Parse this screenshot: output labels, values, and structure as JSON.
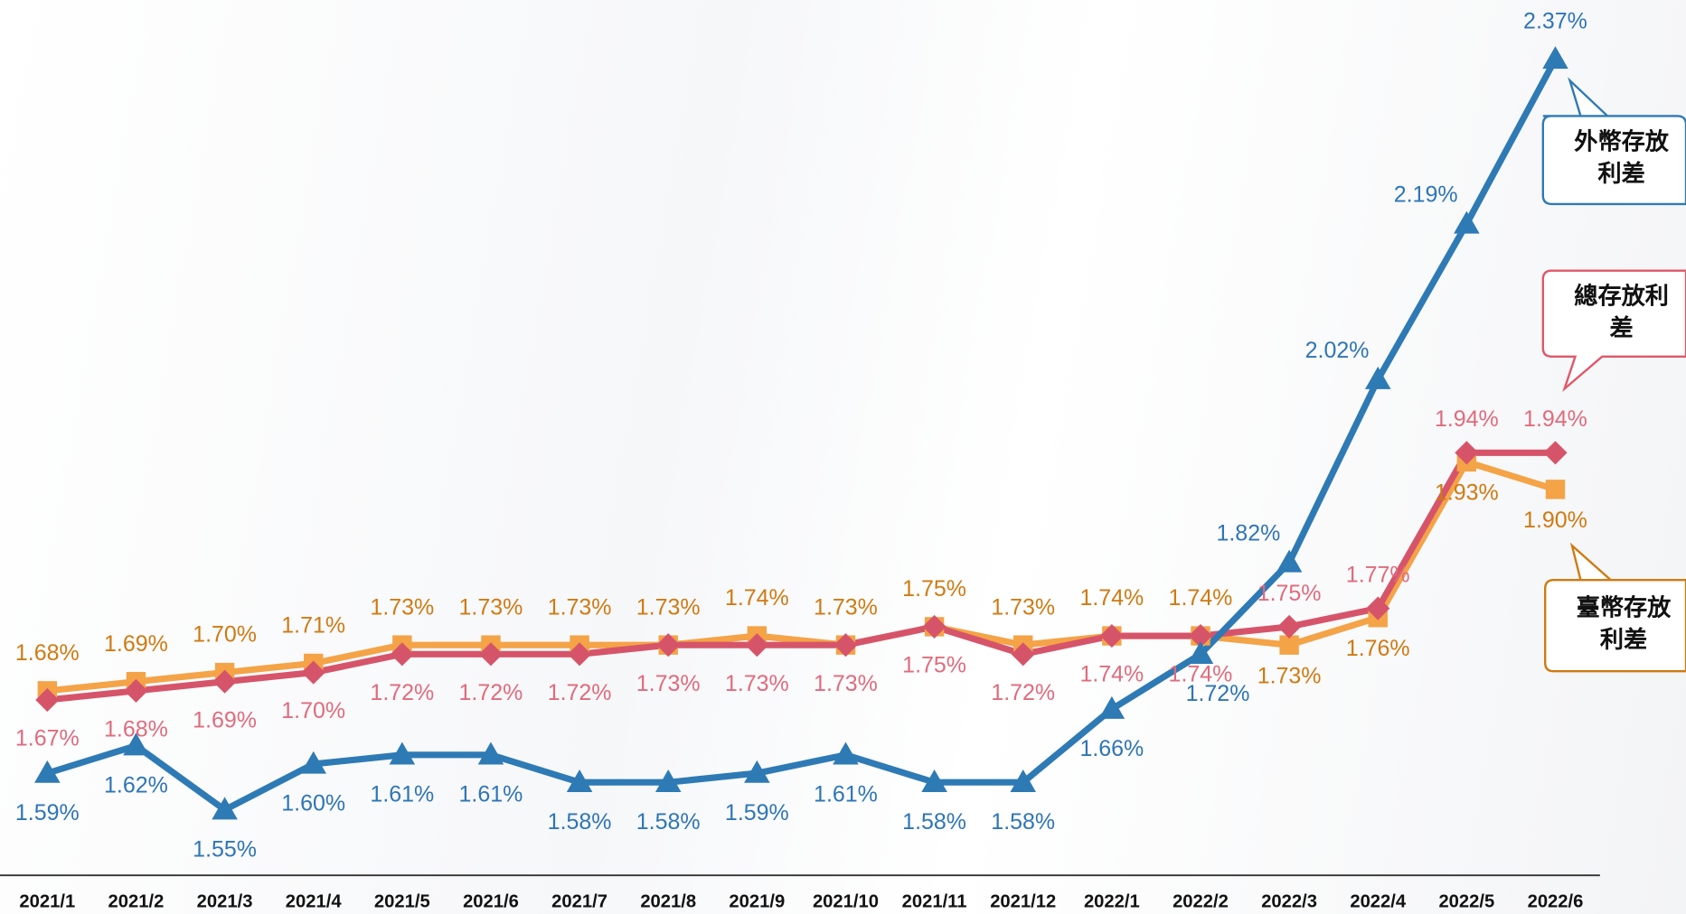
{
  "chart_data": {
    "type": "line",
    "categories": [
      "2021/1",
      "2021/2",
      "2021/3",
      "2021/4",
      "2021/5",
      "2021/6",
      "2021/7",
      "2021/8",
      "2021/9",
      "2021/10",
      "2021/11",
      "2021/12",
      "2022/1",
      "2022/2",
      "2022/3",
      "2022/4",
      "2022/5",
      "2022/6"
    ],
    "series": [
      {
        "name": "臺幣存放利差",
        "color": "#f4a347",
        "label_color": "#d07a12",
        "marker": "square",
        "values": [
          1.68,
          1.69,
          1.7,
          1.71,
          1.73,
          1.73,
          1.73,
          1.73,
          1.74,
          1.73,
          1.75,
          1.73,
          1.74,
          1.74,
          1.73,
          1.76,
          1.93,
          1.9
        ],
        "value_labels": [
          "1.68%",
          "1.69%",
          "1.70%",
          "1.71%",
          "1.73%",
          "1.73%",
          "1.73%",
          "1.73%",
          "1.74%",
          "1.73%",
          "1.75%",
          "1.73%",
          "1.74%",
          "1.74%",
          "1.73%",
          "1.76%",
          "1.93%",
          "1.90%"
        ]
      },
      {
        "name": "總存放利差",
        "color": "#d6546a",
        "label_color": "#e06b7d",
        "marker": "diamond",
        "values": [
          1.67,
          1.68,
          1.69,
          1.7,
          1.72,
          1.72,
          1.72,
          1.73,
          1.73,
          1.73,
          1.75,
          1.72,
          1.74,
          1.74,
          1.75,
          1.77,
          1.94,
          1.94
        ],
        "value_labels": [
          "1.67%",
          "1.68%",
          "1.69%",
          "1.70%",
          "1.72%",
          "1.72%",
          "1.72%",
          "1.73%",
          "1.73%",
          "1.73%",
          "1.75%",
          "1.72%",
          "1.74%",
          "1.74%",
          "1.75%",
          "1.77%",
          "1.94%",
          "1.94%"
        ]
      },
      {
        "name": "外幣存放利差",
        "color": "#2e7ab5",
        "label_color": "#2e75b6",
        "marker": "triangle",
        "values": [
          1.59,
          1.62,
          1.55,
          1.6,
          1.61,
          1.61,
          1.58,
          1.58,
          1.59,
          1.61,
          1.58,
          1.58,
          1.66,
          1.72,
          1.82,
          2.02,
          2.19,
          2.37
        ],
        "value_labels": [
          "1.59%",
          "1.62%",
          "1.55%",
          "1.60%",
          "1.61%",
          "1.61%",
          "1.58%",
          "1.58%",
          "1.59%",
          "1.61%",
          "1.58%",
          "1.58%",
          "1.66%",
          "1.72%",
          "1.82%",
          "2.02%",
          "2.19%",
          "2.37%"
        ]
      }
    ]
  }
}
